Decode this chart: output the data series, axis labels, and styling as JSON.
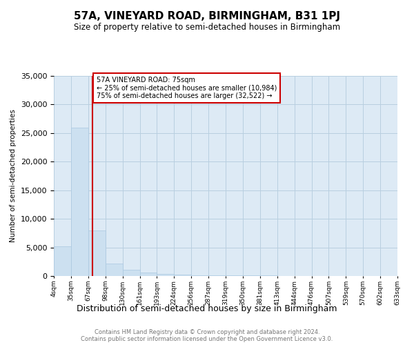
{
  "title": "57A, VINEYARD ROAD, BIRMINGHAM, B31 1PJ",
  "subtitle": "Size of property relative to semi-detached houses in Birmingham",
  "xlabel": "Distribution of semi-detached houses by size in Birmingham",
  "ylabel": "Number of semi-detached properties",
  "footer_line1": "Contains HM Land Registry data © Crown copyright and database right 2024.",
  "footer_line2": "Contains public sector information licensed under the Open Government Licence v3.0.",
  "property_size": 75,
  "property_bin_idx": 1,
  "property_label": "57A VINEYARD ROAD: 75sqm",
  "pct25_label": "← 25% of semi-detached houses are smaller (10,984)",
  "pct75_label": "75% of semi-detached houses are larger (32,522) →",
  "bar_color": "#cce0f0",
  "bar_edge_color": "#aac8e0",
  "vline_color": "#cc0000",
  "annotation_box_edgecolor": "#cc0000",
  "grid_color": "#b8cfe0",
  "background_color": "#ddeaf5",
  "ylim": [
    0,
    35000
  ],
  "yticks": [
    0,
    5000,
    10000,
    15000,
    20000,
    25000,
    30000,
    35000
  ],
  "bins": [
    4,
    35,
    67,
    98,
    130,
    161,
    193,
    224,
    256,
    287,
    319,
    350,
    381,
    413,
    444,
    476,
    507,
    539,
    570,
    602,
    633
  ],
  "bin_labels": [
    "4sqm",
    "35sqm",
    "67sqm",
    "98sqm",
    "130sqm",
    "161sqm",
    "193sqm",
    "224sqm",
    "256sqm",
    "287sqm",
    "319sqm",
    "350sqm",
    "381sqm",
    "413sqm",
    "444sqm",
    "476sqm",
    "507sqm",
    "539sqm",
    "570sqm",
    "602sqm",
    "633sqm"
  ],
  "counts": [
    5200,
    26000,
    8000,
    2200,
    1050,
    570,
    330,
    185,
    145,
    115,
    95,
    75,
    65,
    55,
    45,
    38,
    28,
    22,
    18,
    13
  ]
}
